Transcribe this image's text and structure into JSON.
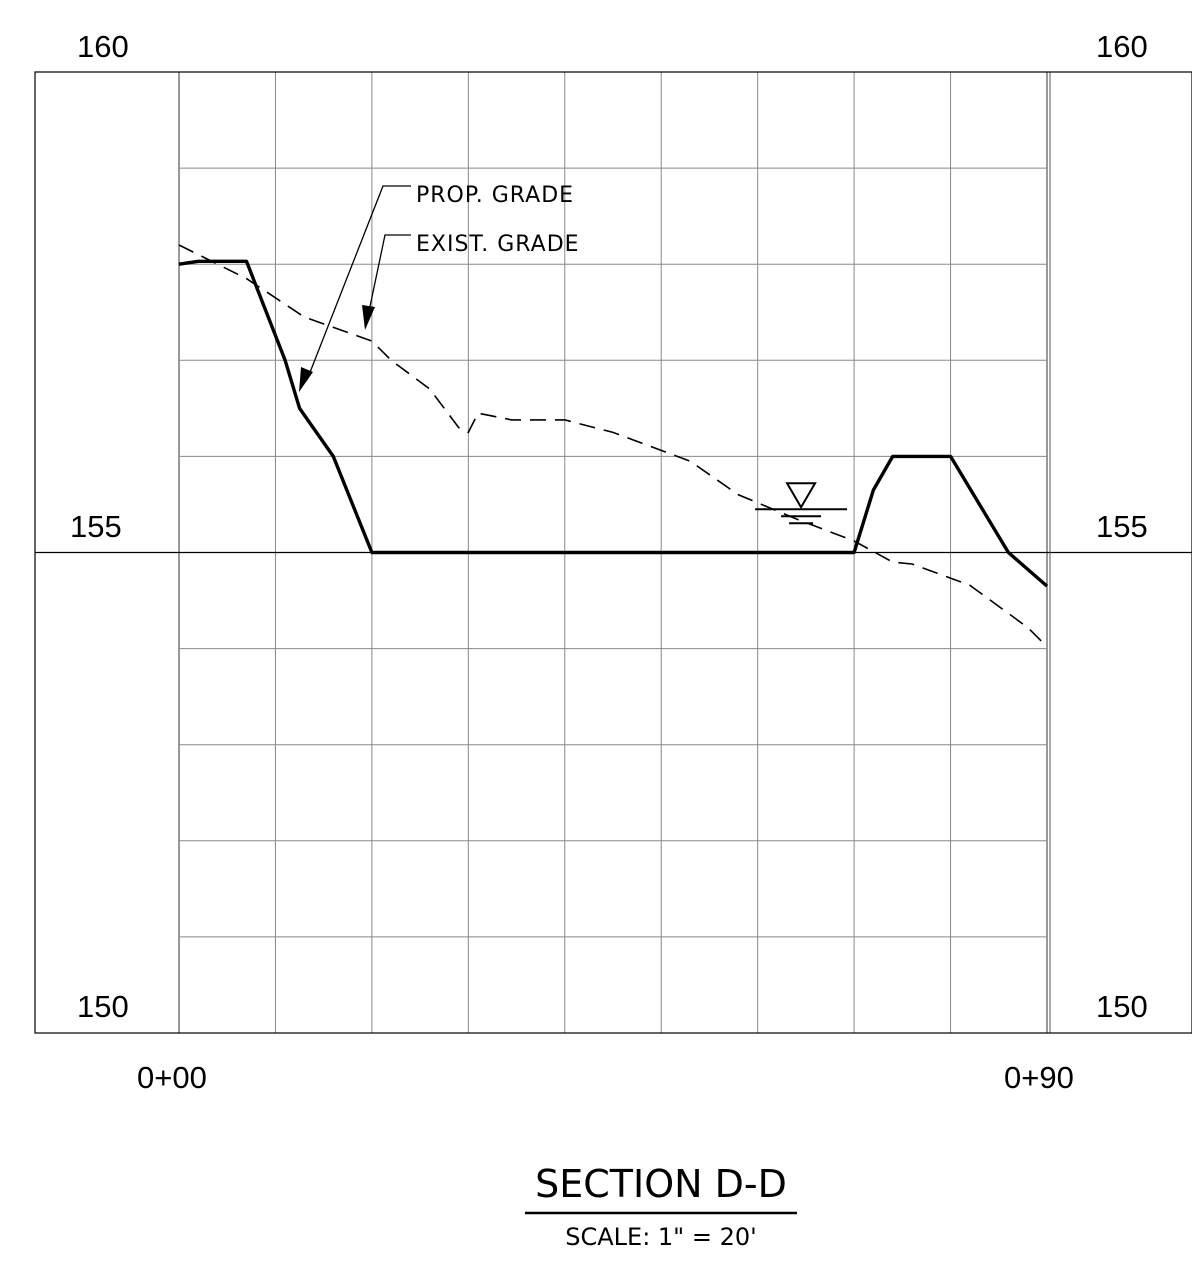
{
  "section": {
    "title": "SECTION D-D",
    "scale": "SCALE: 1\" = 20'"
  },
  "elevation_labels": {
    "top": "160",
    "middle": "155",
    "bottom": "150"
  },
  "station_labels": {
    "start": "0+00",
    "end": "0+90"
  },
  "leaders": {
    "proposed": "PROP. GRADE",
    "existing": "EXIST. GRADE"
  },
  "chart_data": {
    "type": "line",
    "xlabel": "",
    "ylabel": "",
    "xlim": [
      0,
      90
    ],
    "ylim": [
      150,
      160
    ],
    "grid": true,
    "series": [
      {
        "name": "PROP. GRADE",
        "style": "solid-heavy",
        "x": [
          0,
          2,
          7,
          11,
          12.5,
          16,
          20,
          70,
          72,
          74,
          80,
          86,
          90
        ],
        "y": [
          158,
          158.03,
          158.03,
          157,
          156.5,
          156,
          155,
          155,
          155.65,
          156,
          156,
          155,
          154.65
        ]
      },
      {
        "name": "EXIST. GRADE",
        "style": "dashed",
        "x": [
          0,
          7,
          13,
          20,
          22,
          26,
          29,
          30,
          31,
          34.5,
          40,
          45,
          53,
          58,
          64,
          70,
          74,
          76,
          82,
          88,
          90
        ],
        "y": [
          158.2,
          157.85,
          157.45,
          157.2,
          157,
          156.7,
          156.3,
          156.25,
          156.45,
          156.38,
          156.38,
          156.25,
          155.95,
          155.6,
          155.35,
          155.12,
          154.9,
          154.88,
          154.66,
          154.22,
          154.02
        ]
      }
    ],
    "water_surface": {
      "x": 64.5,
      "y": 155.45
    }
  }
}
